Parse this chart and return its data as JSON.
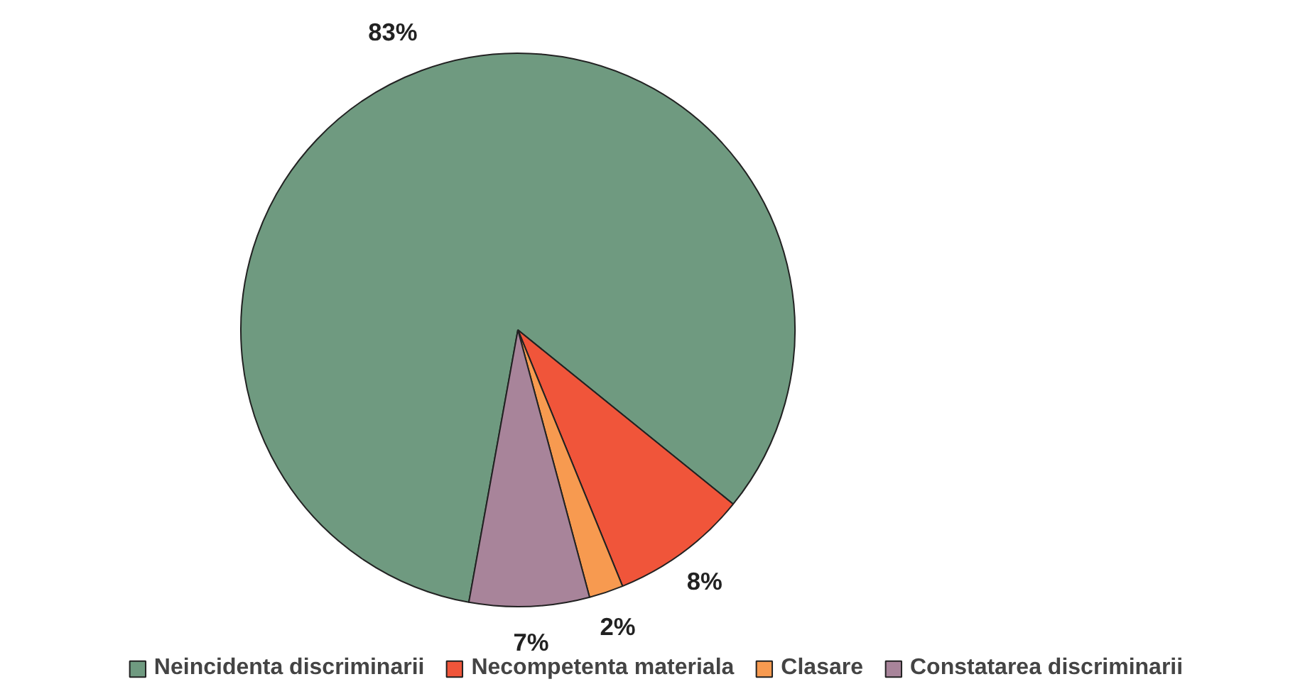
{
  "chart_data": {
    "type": "pie",
    "categories": [
      "Neincidenta discriminarii",
      "Necompetenta materiala",
      "Clasare",
      "Constatarea discriminarii"
    ],
    "values": [
      83,
      8,
      2,
      7
    ],
    "value_labels": [
      "83%",
      "8%",
      "2%",
      "7%"
    ],
    "colors": [
      "#6f9a80",
      "#f0553a",
      "#f79a50",
      "#a8849a"
    ],
    "legend": "bottom"
  }
}
